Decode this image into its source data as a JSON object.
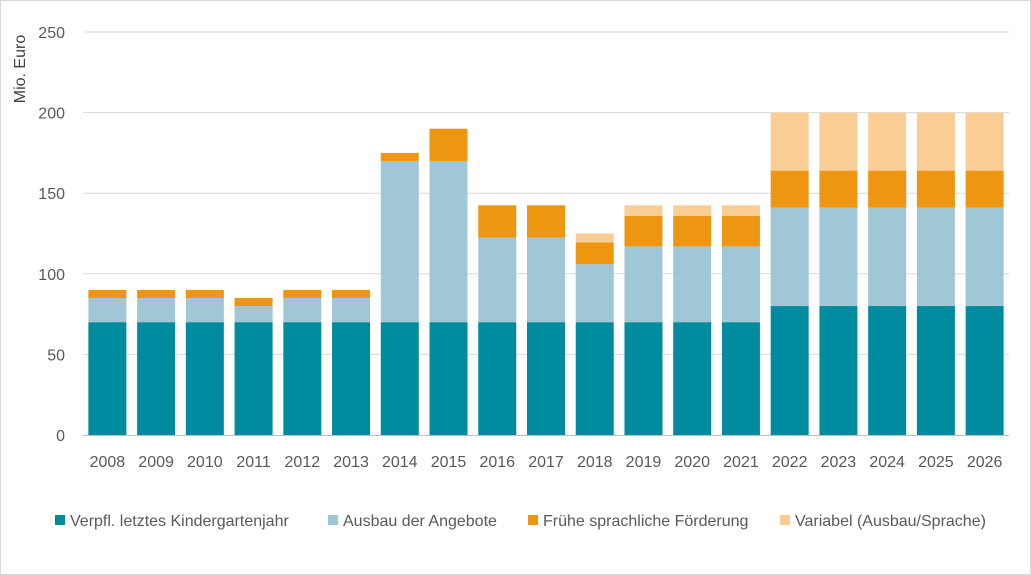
{
  "chart_data": {
    "type": "bar",
    "stacked": true,
    "title": "",
    "xlabel": "",
    "ylabel": "Mio. Euro",
    "ylim": [
      0,
      250
    ],
    "yticks": [
      0,
      50,
      100,
      150,
      200,
      250
    ],
    "grid": true,
    "legend_position": "bottom",
    "categories": [
      "2008",
      "2009",
      "2010",
      "2011",
      "2012",
      "2013",
      "2014",
      "2015",
      "2016",
      "2017",
      "2018",
      "2019",
      "2020",
      "2021",
      "2022",
      "2023",
      "2024",
      "2025",
      "2026"
    ],
    "series": [
      {
        "name": "Verpfl. letztes Kindergartenjahr",
        "color": "#008b9f",
        "values": [
          70,
          70,
          70,
          70,
          70,
          70,
          70,
          70,
          70,
          70,
          70,
          70,
          70,
          70,
          80,
          80,
          80,
          80,
          80
        ]
      },
      {
        "name": "Ausbau der Angebote",
        "color": "#9fc7d6",
        "values": [
          15,
          15,
          15,
          10,
          15,
          15,
          100,
          100,
          52.5,
          52.5,
          36,
          47,
          47,
          47,
          61,
          61,
          61,
          61,
          61
        ]
      },
      {
        "name": "Frühe sprachliche Förderung",
        "color": "#ee9611",
        "values": [
          5,
          5,
          5,
          5,
          5,
          5,
          5,
          20,
          20,
          20,
          13.5,
          19,
          19,
          19,
          23,
          23,
          23,
          23,
          23
        ]
      },
      {
        "name": "Variabel (Ausbau/Sprache)",
        "color": "#f9cd93",
        "values": [
          0,
          0,
          0,
          0,
          0,
          0,
          0,
          0,
          0,
          0,
          5.5,
          6.5,
          6.5,
          6.5,
          36,
          36,
          36,
          36,
          36
        ]
      }
    ]
  },
  "colors": {
    "grid": "#d9d9d9",
    "axis": "#bfbfbf"
  }
}
